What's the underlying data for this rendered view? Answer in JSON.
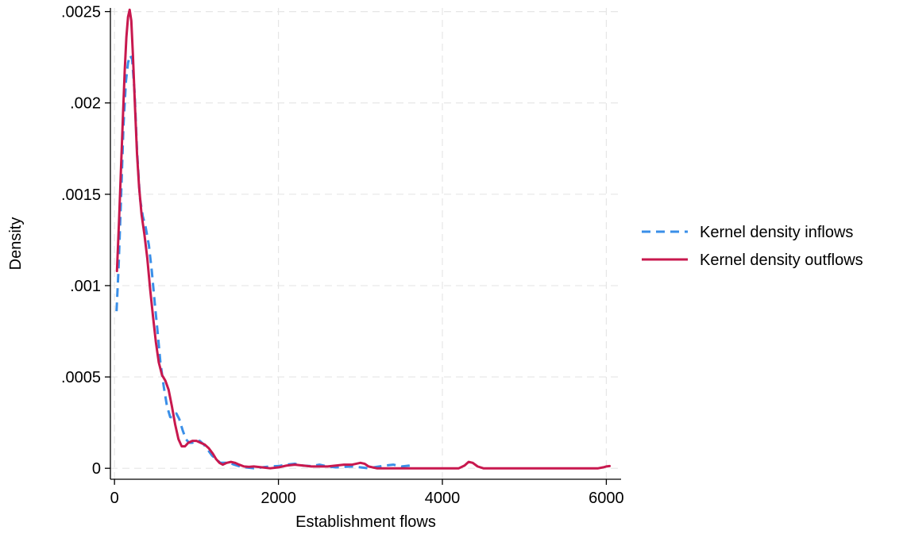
{
  "chart_data": {
    "type": "line",
    "title": "",
    "xlabel": "Establishment flows",
    "ylabel": "Density",
    "xlim": [
      -50,
      6180
    ],
    "ylim": [
      -6e-05,
      0.00252
    ],
    "grid": true,
    "legend_position": "right",
    "x_ticks": [
      {
        "value": 0,
        "label": "0"
      },
      {
        "value": 2000,
        "label": "2000"
      },
      {
        "value": 4000,
        "label": "4000"
      },
      {
        "value": 6000,
        "label": "6000"
      }
    ],
    "y_ticks": [
      {
        "value": 0,
        "label": "0"
      },
      {
        "value": 0.0005,
        "label": ".0005"
      },
      {
        "value": 0.001,
        "label": ".001"
      },
      {
        "value": 0.0015,
        "label": ".0015"
      },
      {
        "value": 0.002,
        "label": ".002"
      },
      {
        "value": 0.0025,
        "label": ".0025"
      }
    ],
    "series": [
      {
        "name": "Kernel density inflows",
        "color": "#3a8fe8",
        "dash": "dashed",
        "points": [
          [
            25,
            0.00086
          ],
          [
            50,
            0.0011
          ],
          [
            80,
            0.00148
          ],
          [
            110,
            0.00188
          ],
          [
            140,
            0.00212
          ],
          [
            165,
            0.00222
          ],
          [
            190,
            0.00226
          ],
          [
            215,
            0.00224
          ],
          [
            245,
            0.00206
          ],
          [
            275,
            0.00174
          ],
          [
            310,
            0.00148
          ],
          [
            345,
            0.00138
          ],
          [
            380,
            0.00132
          ],
          [
            420,
            0.00122
          ],
          [
            455,
            0.00108
          ],
          [
            490,
            0.00091
          ],
          [
            525,
            0.00075
          ],
          [
            560,
            0.00058
          ],
          [
            600,
            0.00045
          ],
          [
            640,
            0.00034
          ],
          [
            680,
            0.00028
          ],
          [
            720,
            0.00028
          ],
          [
            755,
            0.0003
          ],
          [
            790,
            0.00027
          ],
          [
            830,
            0.00021
          ],
          [
            870,
            0.00016
          ],
          [
            910,
            0.00014
          ],
          [
            950,
            0.00014
          ],
          [
            990,
            0.00015
          ],
          [
            1040,
            0.00015
          ],
          [
            1090,
            0.00013
          ],
          [
            1140,
            0.0001
          ],
          [
            1190,
            7e-05
          ],
          [
            1240,
            5e-05
          ],
          [
            1290,
            3e-05
          ],
          [
            1340,
            3e-05
          ],
          [
            1400,
            3e-05
          ],
          [
            1460,
            2e-05
          ],
          [
            1530,
            1e-05
          ],
          [
            1600,
            5e-06
          ],
          [
            1700,
            0.0
          ],
          [
            1800,
            5e-06
          ],
          [
            1900,
            1e-05
          ],
          [
            2000,
            1.2e-05
          ],
          [
            2100,
            2e-05
          ],
          [
            2200,
            2.5e-05
          ],
          [
            2300,
            1.5e-05
          ],
          [
            2400,
            1.2e-05
          ],
          [
            2500,
            2e-05
          ],
          [
            2600,
            1e-05
          ],
          [
            2700,
            5e-06
          ],
          [
            2800,
            8e-06
          ],
          [
            2900,
            1e-05
          ],
          [
            3000,
            5e-06
          ],
          [
            3100,
            0.0
          ],
          [
            3200,
            8e-06
          ],
          [
            3300,
            1.5e-05
          ],
          [
            3400,
            2e-05
          ],
          [
            3500,
            1e-05
          ],
          [
            3600,
            1.5e-05
          ],
          [
            3650,
            2e-05
          ]
        ]
      },
      {
        "name": "Kernel density outflows",
        "color": "#c8184e",
        "dash": "solid",
        "points": [
          [
            30,
            0.00108
          ],
          [
            55,
            0.00135
          ],
          [
            80,
            0.00165
          ],
          [
            105,
            0.00195
          ],
          [
            125,
            0.00218
          ],
          [
            145,
            0.00236
          ],
          [
            165,
            0.00247
          ],
          [
            185,
            0.00251
          ],
          [
            205,
            0.00245
          ],
          [
            225,
            0.00226
          ],
          [
            250,
            0.00198
          ],
          [
            275,
            0.00172
          ],
          [
            300,
            0.00154
          ],
          [
            330,
            0.00139
          ],
          [
            365,
            0.00128
          ],
          [
            400,
            0.00115
          ],
          [
            435,
            0.00098
          ],
          [
            470,
            0.00083
          ],
          [
            505,
            0.00069
          ],
          [
            540,
            0.00058
          ],
          [
            580,
            0.00051
          ],
          [
            620,
            0.00048
          ],
          [
            660,
            0.00043
          ],
          [
            700,
            0.00034
          ],
          [
            740,
            0.00024
          ],
          [
            780,
            0.00016
          ],
          [
            820,
            0.00012
          ],
          [
            860,
            0.00012
          ],
          [
            900,
            0.00014
          ],
          [
            950,
            0.00015
          ],
          [
            1000,
            0.00015
          ],
          [
            1050,
            0.00014
          ],
          [
            1100,
            0.00013
          ],
          [
            1150,
            0.00011
          ],
          [
            1200,
            8e-05
          ],
          [
            1240,
            5e-05
          ],
          [
            1280,
            3e-05
          ],
          [
            1320,
            2e-05
          ],
          [
            1370,
            3e-05
          ],
          [
            1420,
            3.5e-05
          ],
          [
            1470,
            3e-05
          ],
          [
            1520,
            2e-05
          ],
          [
            1580,
            1e-05
          ],
          [
            1640,
            8e-06
          ],
          [
            1700,
            1e-05
          ],
          [
            1800,
            5e-06
          ],
          [
            1900,
            0.0
          ],
          [
            2000,
            5e-06
          ],
          [
            2100,
            1.5e-05
          ],
          [
            2200,
            2e-05
          ],
          [
            2300,
            1.5e-05
          ],
          [
            2400,
            1e-05
          ],
          [
            2500,
            1e-05
          ],
          [
            2600,
            1e-05
          ],
          [
            2700,
            1.5e-05
          ],
          [
            2800,
            2e-05
          ],
          [
            2900,
            2e-05
          ],
          [
            2950,
            2.5e-05
          ],
          [
            3000,
            3e-05
          ],
          [
            3050,
            2.5e-05
          ],
          [
            3100,
            1e-05
          ],
          [
            3200,
            0.0
          ],
          [
            3600,
            0.0
          ],
          [
            4000,
            0.0
          ],
          [
            4200,
            0.0
          ],
          [
            4270,
            1.5e-05
          ],
          [
            4320,
            3.5e-05
          ],
          [
            4370,
            3e-05
          ],
          [
            4430,
            1e-05
          ],
          [
            4500,
            0.0
          ],
          [
            5000,
            0.0
          ],
          [
            5500,
            0.0
          ],
          [
            5900,
            0.0
          ],
          [
            5960,
            5e-06
          ],
          [
            6000,
            1e-05
          ],
          [
            6040,
            1.2e-05
          ]
        ]
      }
    ]
  }
}
